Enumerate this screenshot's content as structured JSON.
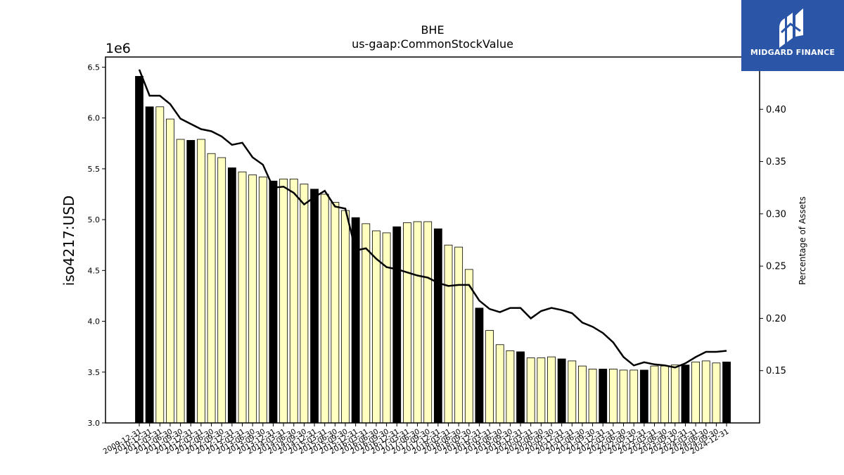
{
  "logo": {
    "text": "MIDGARD FINANCE",
    "background": "#2b56a8",
    "icon": "midgard-logo-icon"
  },
  "chart_data": {
    "type": "bar",
    "title": "BHE",
    "subtitle": "us-gaap:CommonStockValue",
    "ylabel": "iso4217:USD",
    "y2label": "Percentage of Assets",
    "multiplier": "1e6",
    "ylim": [
      3.0,
      6.6
    ],
    "y2lim": [
      0.1,
      0.45
    ],
    "yticks": [
      "3.0",
      "3.5",
      "4.0",
      "4.5",
      "5.0",
      "5.5",
      "6.0",
      "6.5"
    ],
    "y2ticks": [
      "0.15",
      "0.20",
      "0.25",
      "0.30",
      "0.35",
      "0.40"
    ],
    "grid": false,
    "colors": {
      "annual": "#000000",
      "quarterly": "#ffffc0",
      "line": "#000000"
    },
    "categories": [
      "2009-12-31",
      "2010-12-31",
      "2011-03-31",
      "2011-06-30",
      "2011-09-30",
      "2011-12-31",
      "2012-03-31",
      "2012-06-30",
      "2012-09-30",
      "2012-12-31",
      "2013-03-31",
      "2013-06-30",
      "2013-09-30",
      "2013-12-31",
      "2014-03-31",
      "2014-06-30",
      "2014-09-30",
      "2014-12-31",
      "2015-03-31",
      "2015-06-30",
      "2015-09-30",
      "2015-12-31",
      "2016-03-31",
      "2016-06-30",
      "2016-09-30",
      "2016-12-31",
      "2017-03-31",
      "2017-06-30",
      "2017-09-30",
      "2017-12-31",
      "2018-03-31",
      "2018-06-30",
      "2018-09-30",
      "2018-12-31",
      "2019-03-31",
      "2019-06-30",
      "2019-09-30",
      "2019-12-31",
      "2020-03-31",
      "2020-06-30",
      "2020-09-30",
      "2020-12-31",
      "2021-03-31",
      "2021-06-30",
      "2021-09-30",
      "2021-12-31",
      "2022-03-31",
      "2022-06-30",
      "2022-09-30",
      "2022-12-31",
      "2023-03-31",
      "2023-06-30",
      "2023-09-30",
      "2023-12-31",
      "2024-03-31",
      "2024-06-30",
      "2024-09-30",
      "2024-12-31"
    ],
    "annual": [
      true,
      true,
      false,
      false,
      false,
      true,
      false,
      false,
      false,
      true,
      false,
      false,
      false,
      true,
      false,
      false,
      false,
      true,
      false,
      false,
      false,
      true,
      false,
      false,
      false,
      true,
      false,
      false,
      false,
      true,
      false,
      false,
      false,
      true,
      false,
      false,
      false,
      true,
      false,
      false,
      false,
      true,
      false,
      false,
      false,
      true,
      false,
      false,
      false,
      true,
      false,
      false,
      false,
      true,
      false,
      false,
      false,
      true
    ],
    "series": [
      {
        "type": "bar",
        "values": [
          6.41,
          6.11,
          6.11,
          5.99,
          5.79,
          5.78,
          5.79,
          5.65,
          5.61,
          5.51,
          5.47,
          5.44,
          5.42,
          5.38,
          5.4,
          5.4,
          5.35,
          5.3,
          5.25,
          5.17,
          5.09,
          5.02,
          4.96,
          4.89,
          4.87,
          4.93,
          4.97,
          4.98,
          4.98,
          4.91,
          4.75,
          4.73,
          4.51,
          4.13,
          3.91,
          3.77,
          3.71,
          3.7,
          3.64,
          3.64,
          3.65,
          3.63,
          3.61,
          3.56,
          3.53,
          3.53,
          3.53,
          3.52,
          3.52,
          3.52,
          3.56,
          3.56,
          3.57,
          3.57,
          3.6,
          3.61,
          3.59,
          3.6
        ]
      },
      {
        "type": "line",
        "axis": "right",
        "values": [
          0.438,
          0.413,
          0.413,
          0.405,
          0.391,
          0.386,
          0.381,
          0.379,
          0.374,
          0.366,
          0.368,
          0.354,
          0.347,
          0.325,
          0.326,
          0.32,
          0.309,
          0.316,
          0.322,
          0.307,
          0.305,
          0.265,
          0.267,
          0.257,
          0.249,
          0.247,
          0.244,
          0.241,
          0.239,
          0.234,
          0.231,
          0.232,
          0.232,
          0.217,
          0.209,
          0.206,
          0.21,
          0.21,
          0.2,
          0.207,
          0.21,
          0.208,
          0.205,
          0.196,
          0.192,
          0.186,
          0.177,
          0.163,
          0.155,
          0.158,
          0.156,
          0.155,
          0.153,
          0.157,
          0.163,
          0.168,
          0.168,
          0.169
        ]
      }
    ]
  }
}
